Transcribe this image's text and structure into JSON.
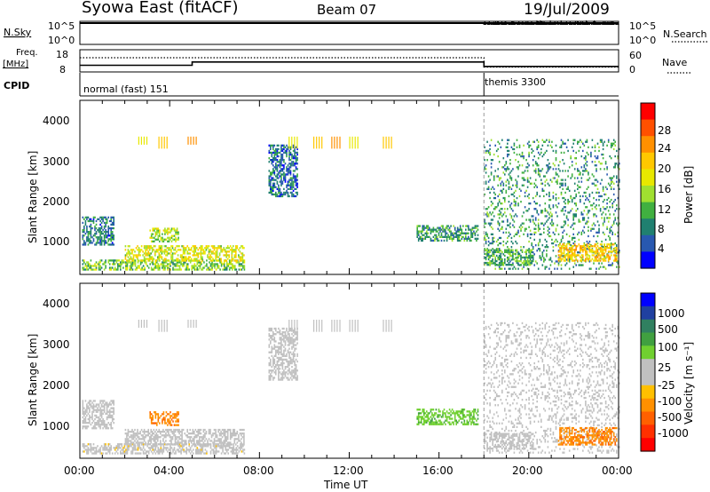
{
  "header": {
    "title": "Syowa East (fitACF)",
    "beam": "Beam 07",
    "date": "19/Jul/2009"
  },
  "panels": {
    "nsky": {
      "label": "N.Sky",
      "ticks": [
        "10^5",
        "10^0"
      ],
      "right_label": "N.Search",
      "right_ticks": [
        "10^5",
        "10^0"
      ]
    },
    "freq": {
      "label_line1": "Freq.",
      "label_line2": "[MHz]",
      "ticks": [
        "18",
        "8"
      ],
      "right_label": "Nave",
      "right_ticks": [
        "60",
        "0"
      ],
      "cpid_label": "CPID",
      "modes": [
        {
          "name": "normal (fast) 151",
          "start_hour": 0
        },
        {
          "name": "themis 3300",
          "start_hour": 18
        }
      ]
    },
    "power": {
      "ylabel": "Slant Range [km]",
      "yticks": [
        "4000",
        "3000",
        "2000",
        "1000"
      ],
      "colorbar_title": "Power [dB]",
      "colorbar_labels": [
        "28",
        "24",
        "20",
        "16",
        "12",
        "8",
        "4"
      ],
      "colorbar_colors": [
        "#ff0000",
        "#ff5000",
        "#ff9000",
        "#ffc800",
        "#e8e800",
        "#a0e030",
        "#40b040",
        "#208070",
        "#2858b0",
        "#0000ff"
      ]
    },
    "velocity": {
      "ylabel": "Slant Range [km]",
      "yticks": [
        "4000",
        "3000",
        "2000",
        "1000"
      ],
      "colorbar_title": "Velocity [m s⁻¹]",
      "colorbar_labels": [
        "1000",
        "500",
        "100",
        "25",
        "-25",
        "-100",
        "-500",
        "-1000"
      ],
      "colorbar_colors": [
        "#0000ff",
        "#2040a0",
        "#308060",
        "#40a040",
        "#70d030",
        "#c0c0c0",
        "#c0c0c0",
        "#ffc000",
        "#ff9000",
        "#ff6000",
        "#ff3000",
        "#ff0000"
      ]
    }
  },
  "xaxis": {
    "label": "Time UT",
    "ticks": [
      "00:00",
      "04:00",
      "08:00",
      "12:00",
      "16:00",
      "20:00",
      "00:00"
    ]
  },
  "chart_data": [
    {
      "type": "line",
      "title": "N.Sky / N.Search",
      "x_units": "hours UT",
      "xlim": [
        0,
        24
      ],
      "series": [
        {
          "name": "N.Sky",
          "x": [
            0,
            4,
            8,
            12,
            16,
            18,
            20,
            22,
            24
          ],
          "values": [
            100000,
            100000,
            100000,
            100000,
            100000,
            100000,
            100000,
            100000,
            100000
          ]
        },
        {
          "name": "N.Search",
          "x": [
            0,
            17.9,
            18,
            20,
            22,
            24
          ],
          "values": [
            0,
            0,
            100000,
            100000,
            100000,
            100000
          ]
        }
      ]
    },
    {
      "type": "line",
      "title": "Freq. [MHz] / Nave",
      "x_units": "hours UT",
      "xlim": [
        0,
        24
      ],
      "series": [
        {
          "name": "Freq.",
          "x": [
            0,
            5,
            5,
            18,
            18,
            24
          ],
          "values": [
            11,
            11,
            12.5,
            12.5,
            10.5,
            10.5
          ]
        },
        {
          "name": "Nave",
          "x": [
            0,
            18,
            18,
            24
          ],
          "values": [
            40,
            40,
            10,
            10
          ]
        }
      ]
    },
    {
      "type": "heatmap",
      "title": "Power [dB]",
      "xlabel": "Time UT",
      "ylabel": "Slant Range [km]",
      "xlim": [
        0,
        24
      ],
      "ylim": [
        180,
        4500
      ],
      "clim": [
        0,
        30
      ],
      "echo_regions": [
        {
          "t0": 0.1,
          "t1": 7.3,
          "r0": 280,
          "r1": 520,
          "value": 12
        },
        {
          "t0": 2.0,
          "t1": 7.3,
          "r0": 500,
          "r1": 900,
          "value": 16
        },
        {
          "t0": 0.1,
          "t1": 1.5,
          "r0": 900,
          "r1": 1600,
          "value": 6
        },
        {
          "t0": 3.1,
          "t1": 4.4,
          "r0": 980,
          "r1": 1300,
          "value": 14
        },
        {
          "t0": 8.4,
          "t1": 9.7,
          "r0": 2100,
          "r1": 3400,
          "value": 5
        },
        {
          "t0": 15.0,
          "t1": 17.7,
          "r0": 1000,
          "r1": 1400,
          "value": 8
        },
        {
          "t0": 18.0,
          "t1": 24,
          "r0": 300,
          "r1": 3500,
          "value": 8
        },
        {
          "t0": 18.0,
          "t1": 20.2,
          "r0": 400,
          "r1": 800,
          "value": 10
        },
        {
          "t0": 21.3,
          "t1": 23.9,
          "r0": 500,
          "r1": 950,
          "value": 20
        }
      ]
    },
    {
      "type": "heatmap",
      "title": "Velocity [m s⁻¹]",
      "xlabel": "Time UT",
      "ylabel": "Slant Range [km]",
      "xlim": [
        0,
        24
      ],
      "ylim": [
        180,
        4500
      ],
      "clim": [
        -1000,
        1000
      ],
      "echo_regions": [
        {
          "t0": 0.1,
          "t1": 7.3,
          "r0": 280,
          "r1": 520,
          "value": -100
        },
        {
          "t0": 2.0,
          "t1": 7.3,
          "r0": 500,
          "r1": 900,
          "value": 0
        },
        {
          "t0": 0.1,
          "t1": 1.5,
          "r0": 900,
          "r1": 1600,
          "value": -50
        },
        {
          "t0": 3.1,
          "t1": 4.4,
          "r0": 980,
          "r1": 1300,
          "value": -500
        },
        {
          "t0": 8.4,
          "t1": 9.7,
          "r0": 2100,
          "r1": 3400,
          "value": 0
        },
        {
          "t0": 15.0,
          "t1": 17.7,
          "r0": 1000,
          "r1": 1400,
          "value": 300
        },
        {
          "t0": 18.0,
          "t1": 24,
          "r0": 300,
          "r1": 3500,
          "value": 0
        },
        {
          "t0": 18.0,
          "t1": 20.2,
          "r0": 400,
          "r1": 800,
          "value": 60
        },
        {
          "t0": 21.3,
          "t1": 23.9,
          "r0": 500,
          "r1": 950,
          "value": -500
        }
      ]
    }
  ]
}
